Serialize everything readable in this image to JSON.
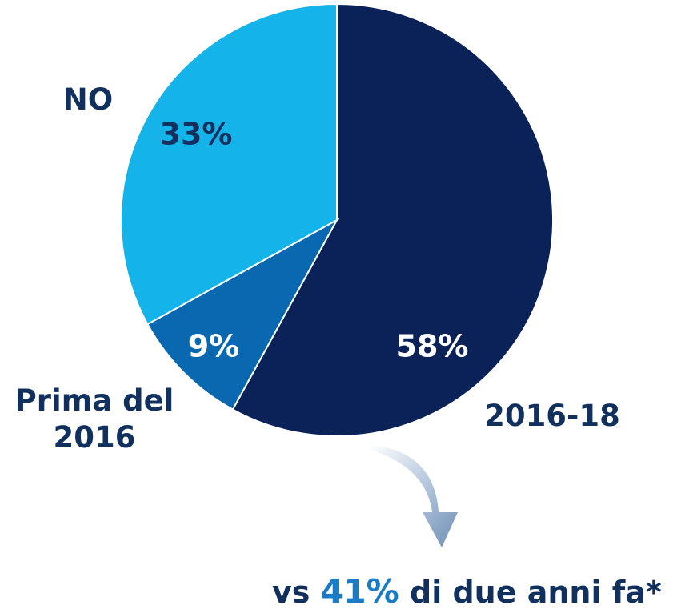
{
  "chart_data": {
    "type": "pie",
    "categories": [
      "2016-18",
      "Prima del 2016",
      "NO"
    ],
    "values": [
      58,
      9,
      33
    ],
    "value_labels": [
      "58%",
      "9%",
      "33%"
    ],
    "colors": [
      "#0b2259",
      "#0a68b0",
      "#14b4ea"
    ],
    "annotation": {
      "prefix": "vs",
      "highlight": "41%",
      "suffix": "di due anni fa*"
    }
  }
}
